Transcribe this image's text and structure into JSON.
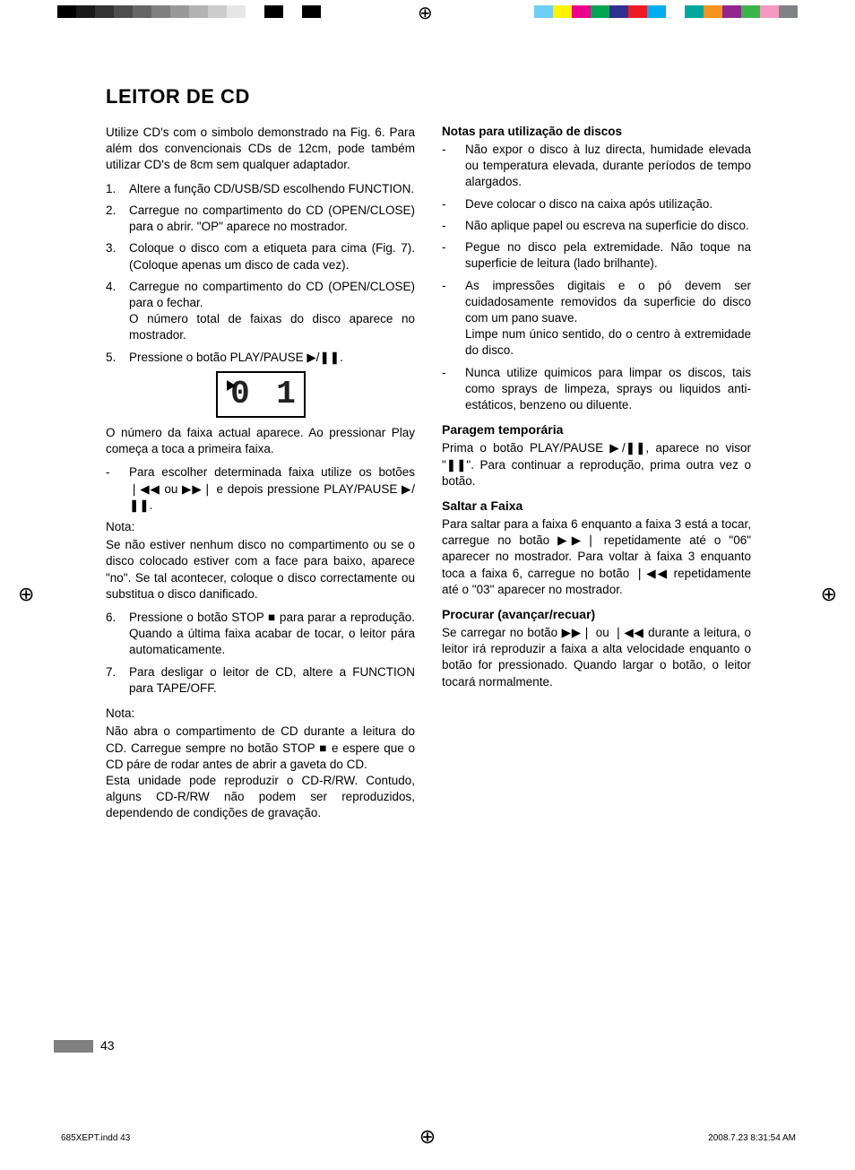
{
  "print": {
    "gray_swatches": [
      "#000000",
      "#1a1a1a",
      "#333333",
      "#4d4d4d",
      "#666666",
      "#808080",
      "#999999",
      "#b3b3b3",
      "#cccccc",
      "#e6e6e6",
      "#ffffff",
      "#000000",
      "#ffffff",
      "#000000",
      "#ffffff"
    ],
    "color_swatches": [
      "#6dcff6",
      "#fff200",
      "#ec008c",
      "#00a651",
      "#2e3192",
      "#ed1c24",
      "#00aeef",
      "#fff",
      "#00a99d",
      "#f7941d",
      "#92278f",
      "#39b54a",
      "#f49ac1",
      "#808285"
    ],
    "registration_glyph": "⊕"
  },
  "title": "LEITOR DE CD",
  "left": {
    "intro": "Utilize CD's com o simbolo demonstrado na Fig. 6. Para além dos convencionais CDs de 12cm, pode também utilizar CD's de 8cm sem qualquer adaptador.",
    "steps1": [
      "Altere a função CD/USB/SD escolhendo FUNCTION.",
      "Carregue no compartimento do CD (OPEN/CLOSE) para o abrir. \"OP\" aparece no mostrador.",
      "Coloque o disco com a etiqueta para cima (Fig. 7). (Coloque apenas um disco de cada vez).",
      "Carregue no compartimento do CD (OPEN/CLOSE) para o fechar.\nO número total de faixas do disco aparece no mostrador.",
      "Pressione o botão PLAY/PAUSE ▶/❚❚."
    ],
    "display_digits": "0 1",
    "after_display": "O número da faixa actual aparece. Ao pressionar Play começa a toca a primeira faixa.",
    "dash_item": "Para escolher determinada faixa utilize os botões  ❘◀◀  ou  ▶▶❘  e depois pressione PLAY/PAUSE ▶/❚❚.",
    "nota_label": "Nota:",
    "nota1": "Se não estiver nenhum disco no compartimento ou se o disco colocado estiver com a face para baixo, aparece \"no\". Se tal acontecer, coloque o disco correctamente ou substitua o disco danificado.",
    "steps2_start": 6,
    "steps2": [
      "Pressione o botão STOP ■ para parar a reprodução. Quando a última faixa acabar de tocar, o leitor pára automaticamente.",
      "Para desligar o leitor de CD, altere a FUNCTION para TAPE/OFF."
    ],
    "nota2": "Não abra o compartimento de CD durante a leitura do CD. Carregue sempre no botão STOP ■ e espere que o CD páre de rodar antes de abrir a gaveta do CD.\nEsta unidade pode reproduzir o CD-R/RW. Contudo, alguns CD-R/RW não podem ser reproduzidos, dependendo de condições de gravação."
  },
  "right": {
    "notas_heading": "Notas para utilização de discos",
    "notas": [
      "Não expor o disco à luz directa, humidade elevada ou temperatura elevada, durante períodos de tempo alargados.",
      "Deve colocar o disco na caixa após utilização.",
      "Não aplique papel ou escreva na superficie do disco.",
      "Pegue no disco pela extremidade. Não toque na superficie de leitura (lado brilhante).",
      "As impressões digitais e o pó devem ser cuidadosamente removidos da superficie do disco com um pano suave.\nLimpe num único sentido, do o centro à extremidade do disco.",
      "Nunca utilize quimicos para limpar os discos, tais como sprays de limpeza, sprays ou liquidos anti-estáticos, benzeno ou diluente."
    ],
    "sec1_h": "Paragem temporária",
    "sec1_p": "Prima o botão PLAY/PAUSE ▶/❚❚, aparece no visor \"❚❚\". Para continuar a reprodução, prima outra vez o botão.",
    "sec2_h": "Saltar a Faixa",
    "sec2_p": "Para saltar para a faixa 6 enquanto a faixa 3 está a tocar, carregue no botão ▶▶❘ repetidamente  até o \"06\" aparecer no mostrador. Para voltar à faixa 3 enquanto toca a faixa 6, carregue no botão ❘◀◀ repetidamente até o \"03\" aparecer no mostrador.",
    "sec3_h": "Procurar (avançar/recuar)",
    "sec3_p": "Se carregar no botão ▶▶❘  ou ❘◀◀ durante a leitura, o leitor irá reproduzir a faixa a alta velocidade enquanto o botão for pressionado. Quando largar o botão, o leitor tocará normalmente."
  },
  "page_number": "43",
  "footer_left": "685XEPT.indd   43",
  "footer_right": "2008.7.23   8:31:54 AM"
}
